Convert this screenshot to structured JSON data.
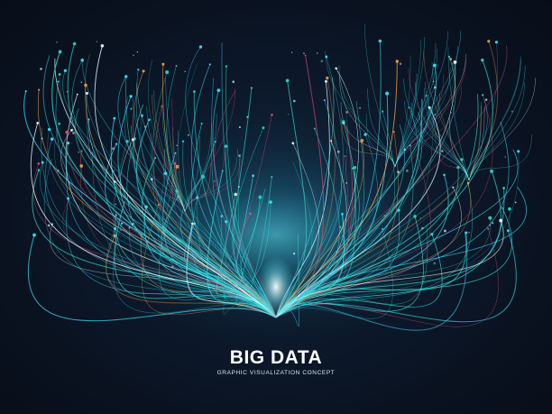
{
  "headline": {
    "title": "BIG DATA",
    "subtitle": "GRAPHIC VISUALIZATION CONCEPT"
  },
  "palette": {
    "background": "#0b1220",
    "cyan": "#38e6ff",
    "teal": "#2fd6c8",
    "orange": "#f0a04a",
    "pink": "#e24a7a",
    "white": "#eaffff"
  },
  "artwork": {
    "description_icon": "network-fountain-graphic"
  }
}
